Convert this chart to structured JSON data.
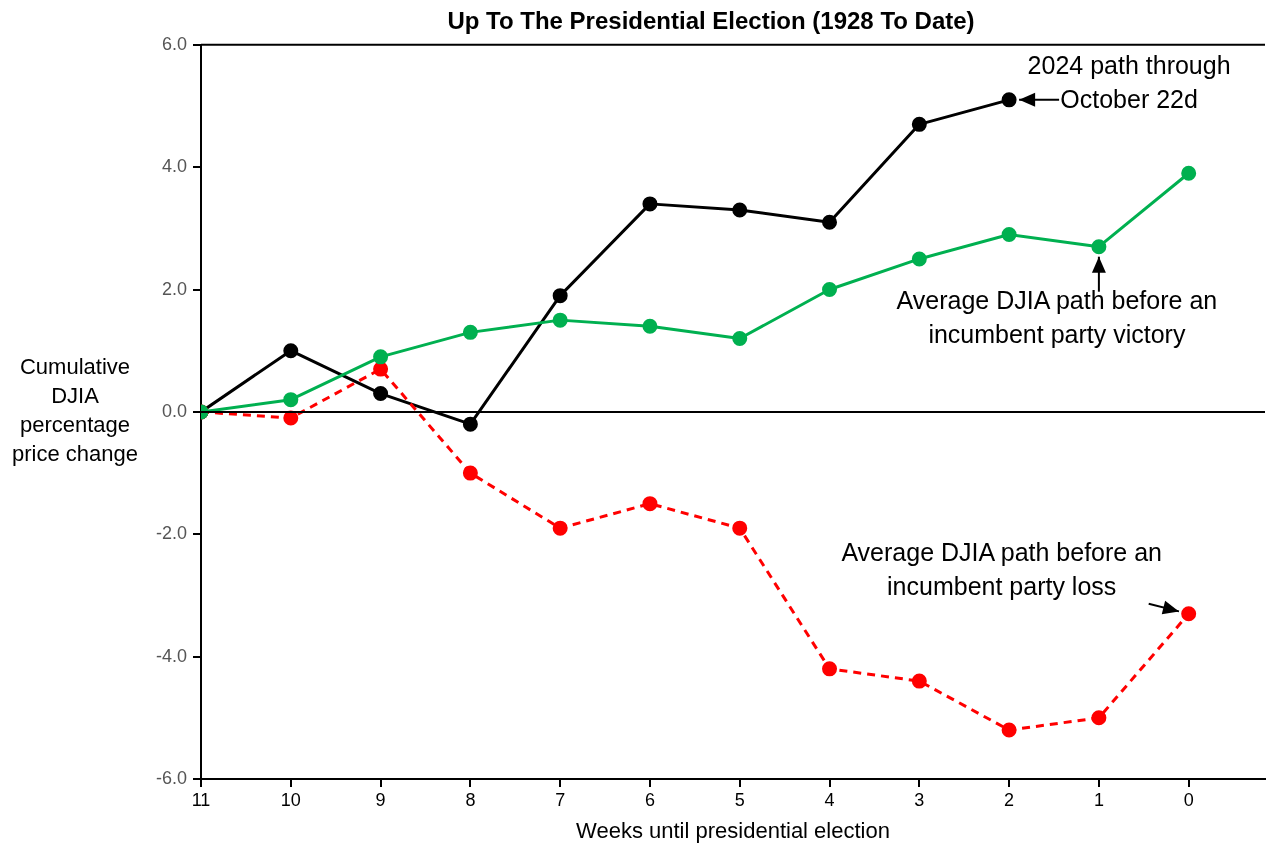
{
  "chart_data": {
    "type": "line",
    "title": "Up To The Presidential Election (1928 To Date)",
    "xlabel": "Weeks until presidential election",
    "ylabel": "Cumulative DJIA percentage price change",
    "x": [
      11,
      10,
      9,
      8,
      7,
      6,
      5,
      4,
      3,
      2,
      1,
      0
    ],
    "series": [
      {
        "color": "#00b050",
        "line_style": "solid",
        "values": [
          0,
          0.2,
          0.9,
          1.3,
          1.5,
          1.4,
          1.2,
          2.0,
          2.5,
          2.9,
          2.7,
          3.9
        ]
      },
      {
        "color": "#ff0000",
        "line_style": "dashed",
        "values": [
          0,
          -0.1,
          0.7,
          -1.0,
          -1.9,
          -1.5,
          -1.9,
          -4.2,
          -4.4,
          -5.2,
          -5.0,
          -3.3
        ]
      },
      {
        "color": "#000000",
        "line_style": "solid",
        "values": [
          0,
          1.0,
          0.3,
          -0.2,
          1.9,
          3.4,
          3.3,
          3.1,
          4.7,
          5.1,
          null,
          null
        ]
      }
    ],
    "xlim": [
      11,
      -0.85
    ],
    "xticks": [
      11,
      10,
      9,
      8,
      7,
      6,
      5,
      4,
      3,
      2,
      1,
      0
    ],
    "ylim": [
      -6,
      6
    ],
    "yticks": [
      {
        "value": -6,
        "label": "-6.0"
      },
      {
        "value": -4,
        "label": "-4.0"
      },
      {
        "value": -2,
        "label": "-2.0"
      },
      {
        "value": 0,
        "label": "0.0"
      },
      {
        "value": 2,
        "label": "2.0"
      },
      {
        "value": 4,
        "label": "4.0"
      },
      {
        "value": 6,
        "label": "6.0"
      }
    ],
    "ref_lines": [
      {
        "axis": "y",
        "value": 0,
        "color": "#000000"
      }
    ],
    "grid": false,
    "legend": false,
    "marker": "circle",
    "annotations": [
      {
        "text": "2024 path through October 22d",
        "x": 2,
        "y": 5.1
      },
      {
        "text": "Average DJIA path before an incumbent party victory",
        "x": 1,
        "y": 2.7
      },
      {
        "text": "Average DJIA path before an incumbent party loss",
        "x": 0,
        "y": -3.3
      }
    ]
  }
}
